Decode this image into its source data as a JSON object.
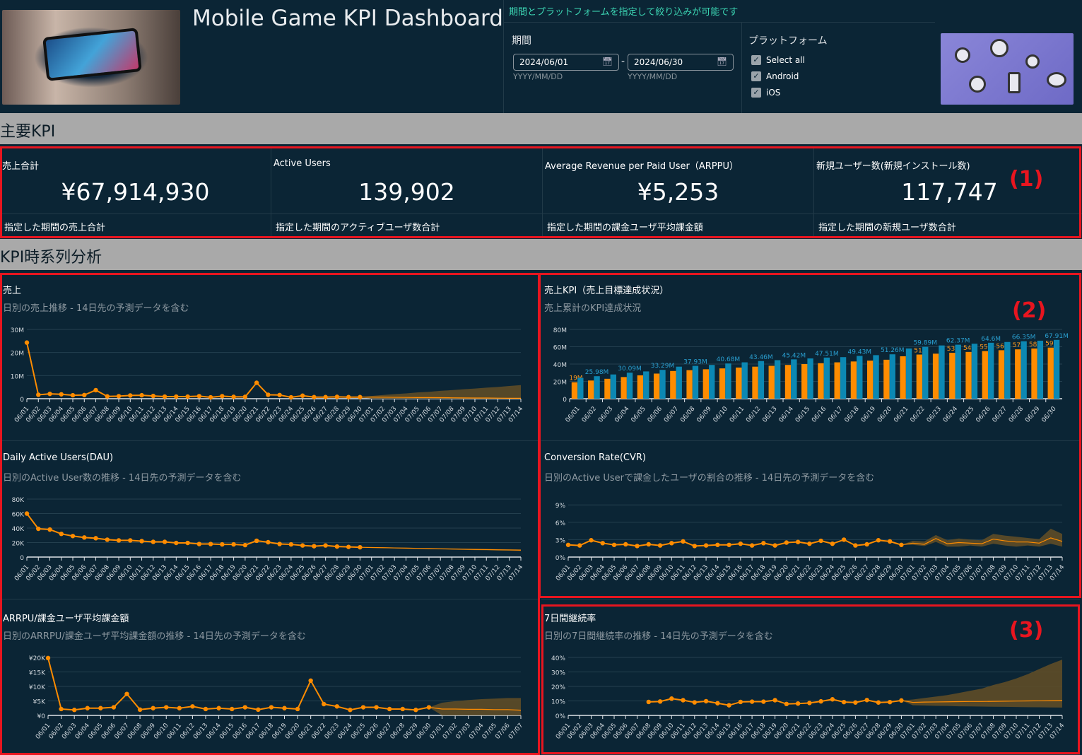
{
  "header": {
    "title": "Mobile Game KPI Dashboard"
  },
  "filters": {
    "hint": "期間とプラットフォームを指定して絞り込みが可能です",
    "period_label": "期間",
    "start_date": "2024/06/01",
    "end_date": "2024/06/30",
    "date_format": "YYYY/MM/DD",
    "separator": "-",
    "platform_label": "プラットフォーム",
    "platforms": [
      {
        "label": "Select all",
        "checked": true
      },
      {
        "label": "Android",
        "checked": true
      },
      {
        "label": "iOS",
        "checked": true
      }
    ]
  },
  "sections": {
    "kpi": "主要KPI",
    "timeseries": "KPI時系列分析"
  },
  "kpis": [
    {
      "title": "売上合計",
      "value": "¥67,914,930",
      "footer": "指定した期間の売上合計"
    },
    {
      "title": "Active Users",
      "value": "139,902",
      "footer": "指定した期間のアクティブユーザ数合計"
    },
    {
      "title": "Average Revenue per Paid User（ARPPU）",
      "value": "¥5,253",
      "footer": "指定した期間の課金ユーザ平均課金額"
    },
    {
      "title": "新規ユーザー数(新規インストール数)",
      "value": "117,747",
      "footer": "指定した期間の新規ユーザ数合計"
    }
  ],
  "annotations": [
    "(1)",
    "(2)",
    "(3)"
  ],
  "colors": {
    "actual": "#ff8c00",
    "target_bar": "#ff8c00",
    "cumulative_bar": "#0c88b3",
    "forecast_band": "#5e4c27",
    "annotation": "#e8151f"
  },
  "chart_data": [
    {
      "id": "sales",
      "type": "line",
      "title": "売上",
      "subtitle": "日別の売上推移 - 14日先の予測データを含む",
      "ylim": [
        0,
        30
      ],
      "yticks": [
        0,
        10,
        20,
        30
      ],
      "ytick_labels": [
        "0",
        "10M",
        "20M",
        "30M"
      ],
      "categories": [
        "06/01",
        "06/02",
        "06/03",
        "06/04",
        "06/05",
        "06/06",
        "06/07",
        "06/08",
        "06/09",
        "06/10",
        "06/11",
        "06/12",
        "06/13",
        "06/14",
        "06/15",
        "06/16",
        "06/17",
        "06/18",
        "06/19",
        "06/20",
        "06/21",
        "06/22",
        "06/23",
        "06/24",
        "06/25",
        "06/26",
        "06/27",
        "06/28",
        "06/29",
        "06/30",
        "07/01",
        "07/02",
        "07/03",
        "07/04",
        "07/05",
        "07/06",
        "07/07",
        "07/08",
        "07/09",
        "07/10",
        "07/11",
        "07/12",
        "07/13",
        "07/14"
      ],
      "actual": [
        24.3,
        1.7,
        2.1,
        1.9,
        1.5,
        1.6,
        3.7,
        1.0,
        1.1,
        1.4,
        1.5,
        1.2,
        0.9,
        0.9,
        0.9,
        1.1,
        0.6,
        1.1,
        0.8,
        0.8,
        6.9,
        1.7,
        1.6,
        0.6,
        1.3,
        0.7,
        0.7,
        0.8,
        0.7,
        0.7
      ],
      "forecast": {
        "mean": [
          0.7,
          0.65,
          0.6,
          0.55,
          0.5,
          0.5,
          0.45,
          0.4,
          0.35,
          0.3,
          0.3,
          0.25,
          0.2,
          0.2
        ],
        "upper": [
          1.2,
          1.6,
          2.0,
          2.3,
          2.7,
          3.0,
          3.4,
          3.7,
          4.1,
          4.4,
          4.8,
          5.1,
          5.5,
          5.9
        ],
        "lower": [
          0,
          0,
          0,
          0,
          0,
          0,
          0,
          0,
          0,
          0,
          0,
          0,
          0,
          0
        ]
      }
    },
    {
      "id": "kpi_bar",
      "type": "bar",
      "title": "売上KPI（売上目標達成状況）",
      "subtitle": "売上累計のKPI達成状況",
      "ylim": [
        0,
        80
      ],
      "yticks": [
        0,
        20,
        40,
        60,
        80
      ],
      "ytick_labels": [
        "0",
        "20M",
        "40M",
        "60M",
        "80M"
      ],
      "categories": [
        "06/01",
        "06/02",
        "06/03",
        "06/04",
        "06/05",
        "06/06",
        "06/07",
        "06/08",
        "06/09",
        "06/10",
        "06/11",
        "06/12",
        "06/13",
        "06/14",
        "06/15",
        "06/16",
        "06/17",
        "06/18",
        "06/19",
        "06/20",
        "06/21",
        "06/22",
        "06/23",
        "06/24",
        "06/25",
        "06/26",
        "06/27",
        "06/28",
        "06/29",
        "06/30"
      ],
      "series": [
        {
          "values": [
            19,
            21,
            23,
            25,
            27,
            29,
            32,
            33,
            34,
            35,
            36,
            37,
            38,
            39,
            40,
            41,
            42,
            43,
            44,
            45,
            49,
            51,
            52,
            53,
            54,
            55,
            56,
            57,
            58,
            59
          ],
          "labels": [
            "19M",
            null,
            null,
            null,
            null,
            null,
            null,
            null,
            null,
            null,
            null,
            null,
            null,
            null,
            null,
            null,
            null,
            null,
            null,
            null,
            null,
            "51M",
            null,
            "53M",
            "54M",
            "55M",
            "56M",
            "57M",
            "58M",
            "59M"
          ]
        },
        {
          "values": [
            24,
            25.98,
            28,
            30.09,
            31.5,
            33.29,
            37,
            37.93,
            39,
            40.68,
            42,
            43.46,
            44.5,
            45.42,
            46.5,
            47.51,
            48,
            49.43,
            50.3,
            51.26,
            58,
            59.89,
            61.5,
            62.37,
            63.5,
            64.6,
            65.5,
            66.35,
            67,
            67.91
          ],
          "labels": [
            null,
            "25.98M",
            null,
            "30.09M",
            null,
            "33.29M",
            null,
            "37.93M",
            null,
            "40.68M",
            null,
            "43.46M",
            null,
            "45.42M",
            null,
            "47.51M",
            null,
            "49.43M",
            null,
            "51.26M",
            null,
            "59.89M",
            null,
            "62.37M",
            null,
            "64.6M",
            null,
            "66.35M",
            null,
            "67.91M"
          ]
        }
      ]
    },
    {
      "id": "dau",
      "type": "line",
      "title": "Daily Active Users(DAU)",
      "subtitle": "日別のActive User数の推移 - 14日先の予測データを含む",
      "ylim": [
        0,
        80
      ],
      "yticks": [
        0,
        20,
        40,
        60,
        80
      ],
      "ytick_labels": [
        "0",
        "20K",
        "40K",
        "60K",
        "80K"
      ],
      "categories": [
        "06/01",
        "06/02",
        "06/03",
        "06/04",
        "06/05",
        "06/06",
        "06/07",
        "06/08",
        "06/09",
        "06/10",
        "06/11",
        "06/12",
        "06/13",
        "06/14",
        "06/15",
        "06/16",
        "06/17",
        "06/18",
        "06/19",
        "06/20",
        "06/21",
        "06/22",
        "06/23",
        "06/24",
        "06/25",
        "06/26",
        "06/27",
        "06/28",
        "06/29",
        "06/30",
        "07/01",
        "07/02",
        "07/03",
        "07/04",
        "07/05",
        "07/06",
        "07/07",
        "07/08",
        "07/09",
        "07/10",
        "07/11",
        "07/12",
        "07/13",
        "07/14"
      ],
      "actual": [
        60,
        39,
        38,
        32,
        29,
        27,
        26,
        24,
        23,
        23,
        22,
        21,
        21,
        19.5,
        19.5,
        18,
        18,
        17.5,
        17.5,
        16.5,
        22.5,
        20.5,
        18,
        17.5,
        16,
        15,
        16,
        14.5,
        14,
        13.5
      ],
      "forecast": {
        "mean": [
          13.2,
          12.9,
          12.6,
          12.3,
          12,
          11.7,
          11.4,
          11.1,
          10.8,
          10.5,
          10.3,
          10,
          9.8,
          9.5
        ],
        "upper": [
          13.7,
          13.5,
          13.2,
          13,
          12.7,
          12.5,
          12.2,
          12,
          11.7,
          11.5,
          11.3,
          11,
          10.8,
          10.6
        ],
        "lower": [
          12.7,
          12.3,
          12,
          11.6,
          11.3,
          10.9,
          10.6,
          10.2,
          9.9,
          9.5,
          9.3,
          9,
          8.8,
          8.4
        ]
      }
    },
    {
      "id": "cvr",
      "type": "line",
      "title": "Conversion Rate(CVR)",
      "subtitle": "日別のActive Userで課金したユーザの割合の推移 - 14日先の予測データを含む",
      "ylim": [
        0,
        10
      ],
      "yticks": [
        0,
        3,
        6,
        9
      ],
      "ytick_labels": [
        "0%",
        "3%",
        "6%",
        "9%"
      ],
      "categories": [
        "06/01",
        "06/02",
        "06/03",
        "06/04",
        "06/05",
        "06/06",
        "06/07",
        "06/08",
        "06/09",
        "06/10",
        "06/11",
        "06/12",
        "06/13",
        "06/14",
        "06/15",
        "06/16",
        "06/17",
        "06/18",
        "06/19",
        "06/20",
        "06/21",
        "06/22",
        "06/23",
        "06/24",
        "06/25",
        "06/26",
        "06/27",
        "06/28",
        "06/29",
        "06/30",
        "07/01",
        "07/02",
        "07/03",
        "07/04",
        "07/05",
        "07/06",
        "07/07",
        "07/08",
        "07/09",
        "07/10",
        "07/11",
        "07/12",
        "07/13",
        "07/14"
      ],
      "actual": [
        2.1,
        2.0,
        2.9,
        2.4,
        2.1,
        2.2,
        1.9,
        2.2,
        2.0,
        2.4,
        2.7,
        1.9,
        2.0,
        2.1,
        2.1,
        2.3,
        2.0,
        2.4,
        2.0,
        2.5,
        2.6,
        2.3,
        2.8,
        2.3,
        3.0,
        2.0,
        2.2,
        2.9,
        2.7,
        2.1
      ],
      "forecast": {
        "mean": [
          2.4,
          2.2,
          3.2,
          2.3,
          2.5,
          2.4,
          2.3,
          3.1,
          2.8,
          2.6,
          2.6,
          2.4,
          3.3,
          2.7
        ],
        "upper": [
          2.8,
          2.7,
          3.8,
          2.9,
          3.2,
          3.0,
          2.9,
          4.0,
          3.7,
          3.5,
          3.3,
          3.1,
          4.9,
          4.0
        ],
        "lower": [
          2.1,
          1.9,
          2.6,
          1.8,
          1.8,
          2.0,
          1.8,
          2.3,
          2.0,
          1.8,
          2.0,
          1.8,
          2.3,
          1.8
        ]
      }
    },
    {
      "id": "arppu",
      "type": "line",
      "title": "ARRPU/課金ユーザ平均課金額",
      "subtitle": "日別のARRPU/課金ユーザ平均課金額の推移 - 14日先の予測データを含む",
      "ylim": [
        0,
        20
      ],
      "yticks": [
        0,
        5,
        10,
        15,
        20
      ],
      "ytick_labels": [
        "¥0",
        "¥5K",
        "¥10K",
        "¥15K",
        "¥20K"
      ],
      "categories": [
        "06/01",
        "06/02",
        "06/03",
        "06/04",
        "06/05",
        "06/06",
        "06/07",
        "06/08",
        "06/09",
        "06/10",
        "06/11",
        "06/12",
        "06/13",
        "06/14",
        "06/15",
        "06/16",
        "06/17",
        "06/18",
        "06/19",
        "06/20",
        "06/21",
        "06/22",
        "06/23",
        "06/24",
        "06/25",
        "06/26",
        "06/27",
        "06/28",
        "06/29",
        "06/30",
        "07/01",
        "07/02",
        "07/03",
        "07/04",
        "07/05",
        "07/06",
        "07/07"
      ],
      "actual": [
        19.8,
        2.2,
        1.9,
        2.5,
        2.5,
        2.8,
        7.4,
        2.0,
        2.5,
        2.8,
        2.5,
        3.1,
        2.2,
        2.5,
        2.2,
        2.8,
        2.0,
        2.8,
        2.5,
        2.2,
        12.0,
        3.9,
        3.1,
        1.9,
        2.8,
        2.8,
        2.2,
        2.2,
        1.9,
        2.8
      ],
      "forecast": {
        "mean": [
          2.2,
          2.2,
          2.1,
          2.1,
          2.0,
          2.0,
          1.8
        ],
        "upper": [
          4.4,
          4.9,
          5.3,
          5.6,
          5.8,
          6.0,
          6.0
        ],
        "lower": [
          0,
          0,
          0,
          0,
          0,
          0,
          0
        ]
      }
    },
    {
      "id": "retention",
      "type": "line",
      "title": "7日間継続率",
      "subtitle": "日別の7日間継続率の推移  - 14日先の予測データを含む",
      "ylim": [
        0,
        40
      ],
      "yticks": [
        0,
        10,
        20,
        30,
        40
      ],
      "ytick_labels": [
        "0%",
        "10%",
        "20%",
        "30%",
        "40%"
      ],
      "categories": [
        "06/01",
        "06/02",
        "06/03",
        "06/04",
        "06/05",
        "06/06",
        "06/07",
        "06/08",
        "06/09",
        "06/10",
        "06/11",
        "06/12",
        "06/13",
        "06/14",
        "06/15",
        "06/16",
        "06/17",
        "06/18",
        "06/19",
        "06/20",
        "06/21",
        "06/22",
        "06/23",
        "06/24",
        "06/25",
        "06/26",
        "06/27",
        "06/28",
        "06/29",
        "06/30",
        "07/01",
        "07/02",
        "07/03",
        "07/04",
        "07/05",
        "07/06",
        "07/07",
        "07/08",
        "07/09",
        "07/10",
        "07/11",
        "07/12",
        "07/13",
        "07/14"
      ],
      "actual": [
        null,
        null,
        null,
        null,
        null,
        null,
        null,
        9.3,
        9.6,
        11.6,
        10.5,
        9.0,
        9.8,
        8.4,
        7.0,
        9.3,
        9.5,
        9.5,
        10.5,
        7.9,
        8.2,
        8.6,
        9.7,
        11.1,
        9.2,
        8.9,
        10.6,
        8.9,
        9.2,
        10.3
      ],
      "forecast": {
        "mean": [
          9.0,
          9.2,
          9.3,
          9.4,
          9.5,
          9.6,
          9.6,
          9.7,
          9.8,
          9.9,
          10.0,
          10.1,
          10.2,
          10.3
        ],
        "upper": [
          11,
          12,
          13,
          14,
          15.5,
          17,
          18.5,
          21,
          23,
          25.5,
          28.5,
          32,
          35.5,
          38.5
        ],
        "lower": [
          7,
          6.8,
          6.6,
          6.5,
          6.3,
          6.2,
          6.1,
          6.0,
          5.9,
          5.8,
          5.7,
          5.6,
          5.5,
          5.4
        ]
      }
    }
  ]
}
